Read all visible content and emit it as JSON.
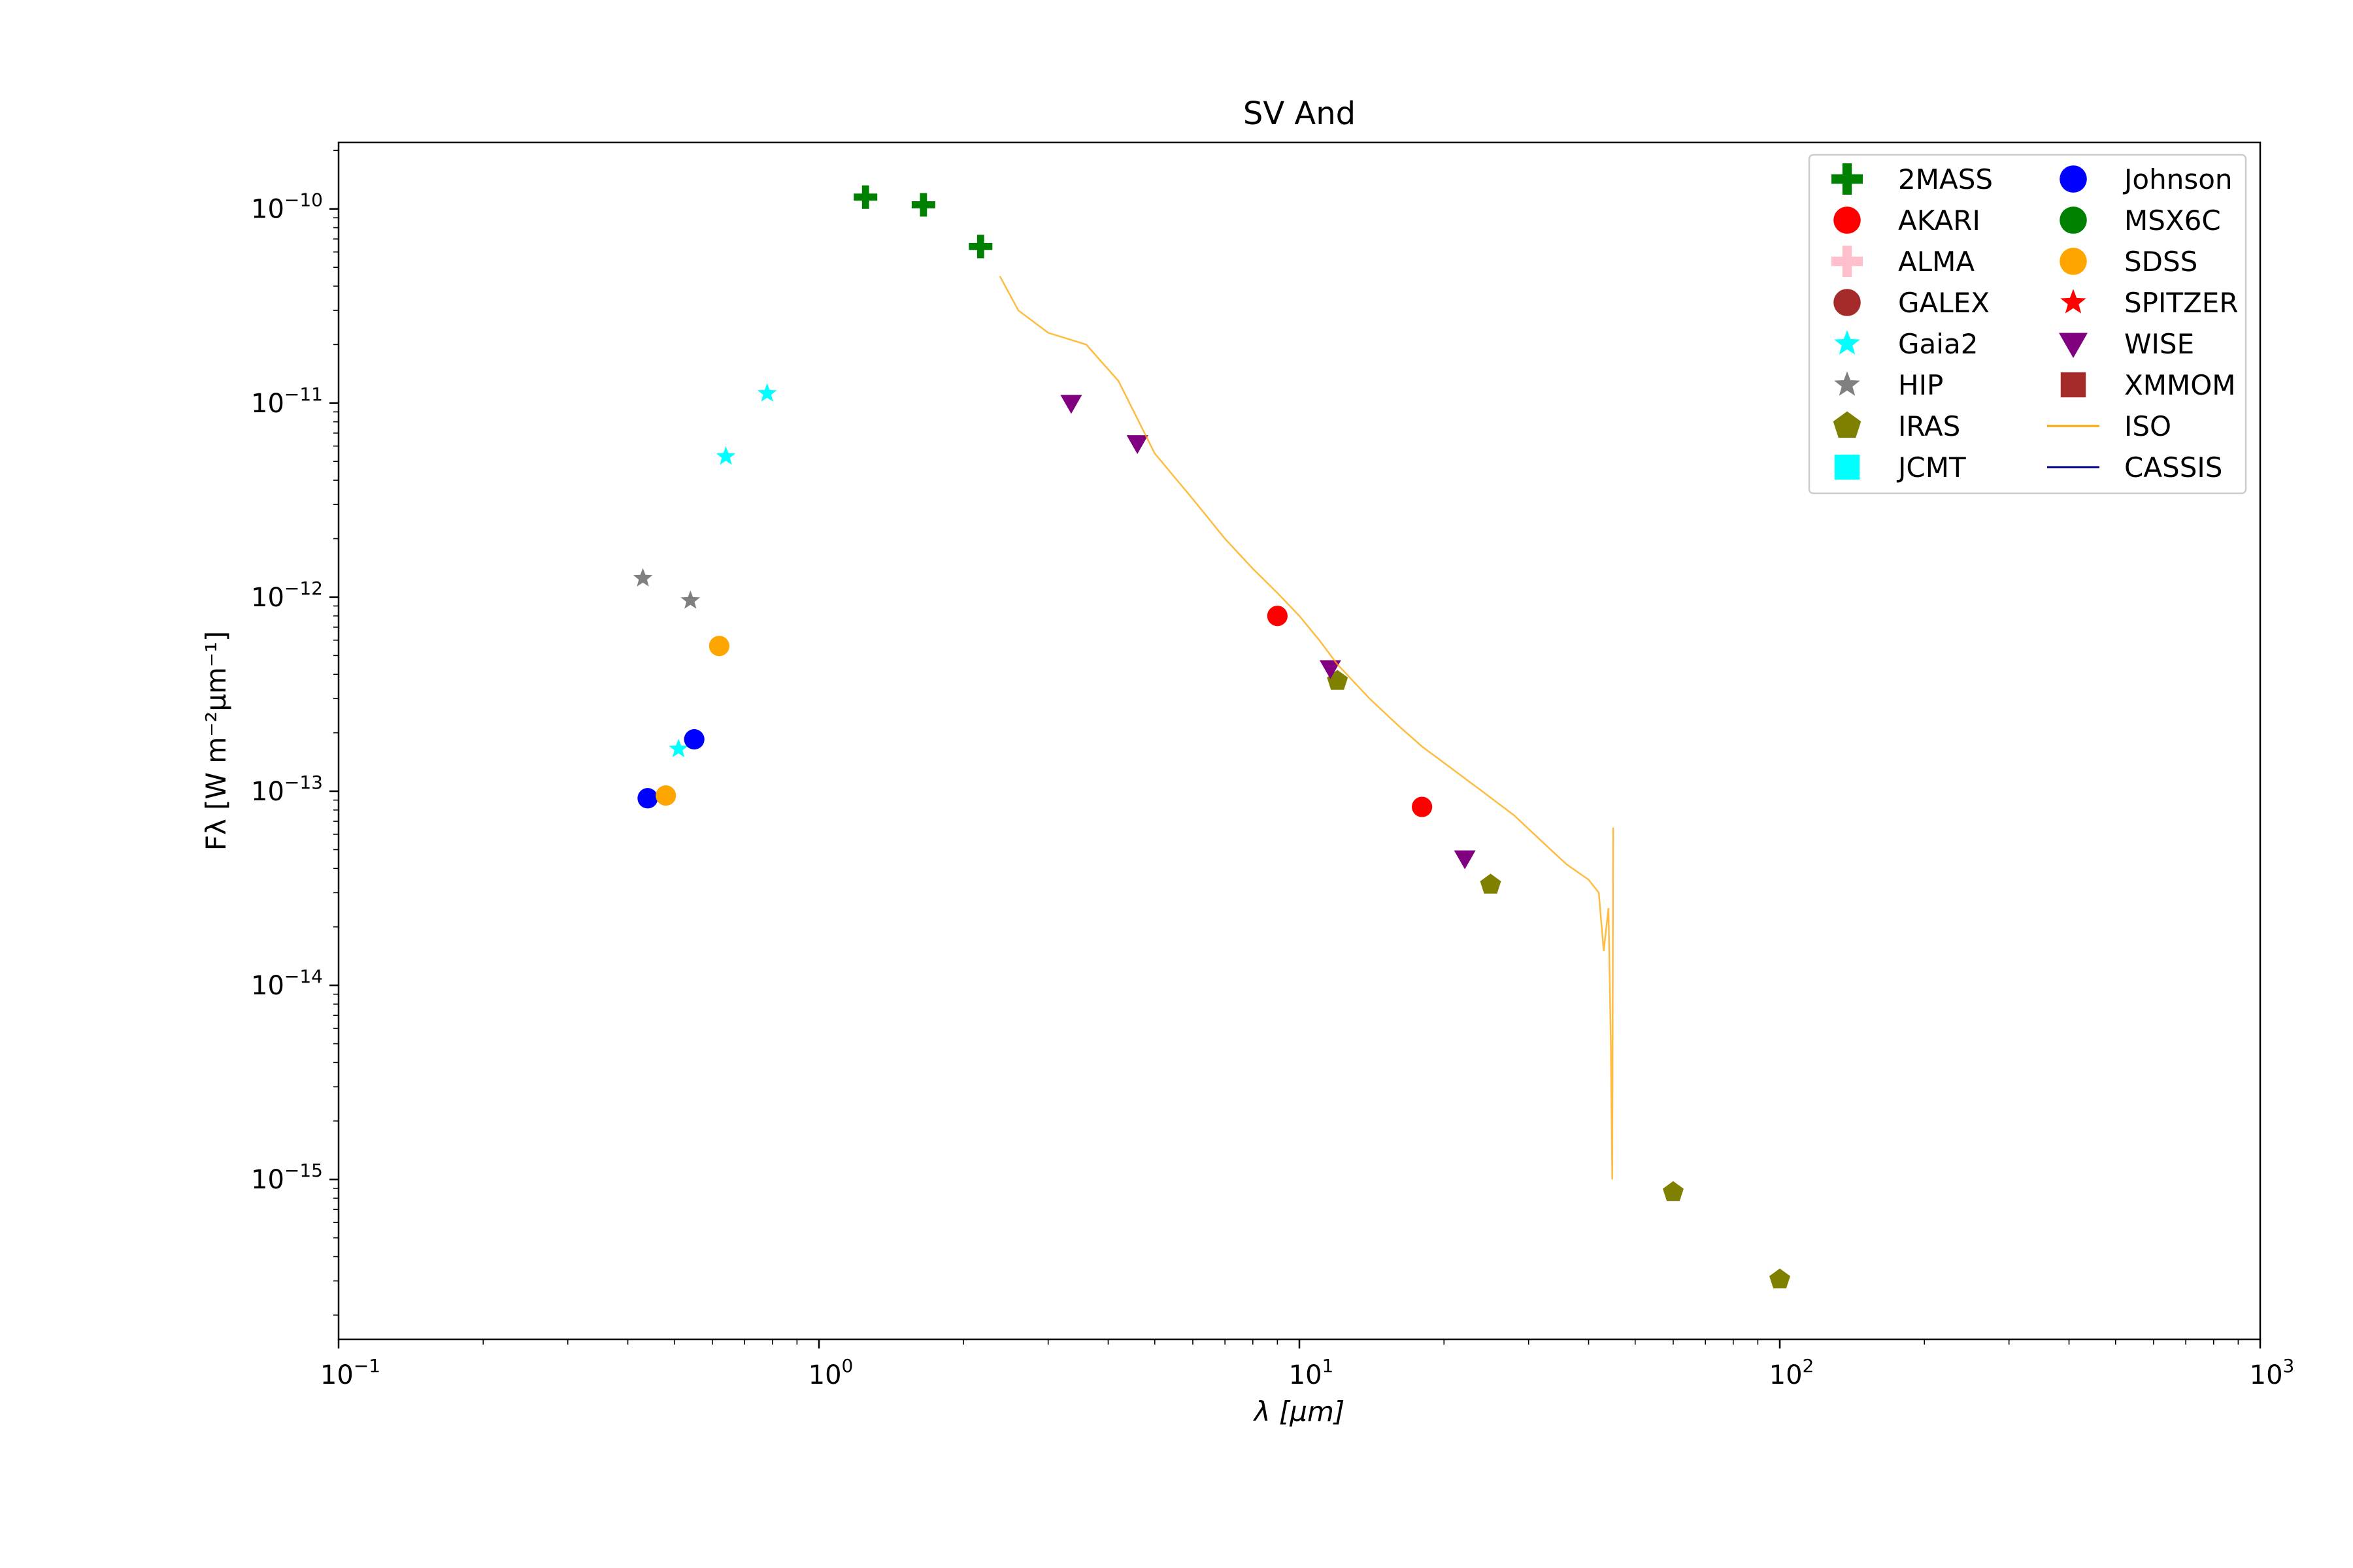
{
  "chart_data": {
    "type": "scatter",
    "title": "SV And",
    "xlabel": "λ [μm]",
    "ylabel": "Fλ [W m⁻²μm⁻¹]",
    "xscale": "log",
    "yscale": "log",
    "xlim": [
      0.1,
      1000
    ],
    "ylim": [
      1.5e-16,
      2.2e-10
    ],
    "x_ticks": [
      {
        "value": 0.1,
        "base": "10",
        "exp": "−1"
      },
      {
        "value": 1,
        "base": "10",
        "exp": "0"
      },
      {
        "value": 10,
        "base": "10",
        "exp": "1"
      },
      {
        "value": 100,
        "base": "10",
        "exp": "2"
      },
      {
        "value": 1000,
        "base": "10",
        "exp": "3"
      }
    ],
    "y_ticks": [
      {
        "value": 1e-10,
        "base": "10",
        "exp": "−10"
      },
      {
        "value": 1e-11,
        "base": "10",
        "exp": "−11"
      },
      {
        "value": 1e-12,
        "base": "10",
        "exp": "−12"
      },
      {
        "value": 1e-13,
        "base": "10",
        "exp": "−13"
      },
      {
        "value": 1e-14,
        "base": "10",
        "exp": "−14"
      },
      {
        "value": 1e-15,
        "base": "10",
        "exp": "−15"
      }
    ],
    "grid": false,
    "legend_position": "top-right",
    "legend_columns": 2,
    "series": [
      {
        "name": "2MASS",
        "marker": "plus",
        "color": "#008000",
        "points": [
          [
            1.25,
            1.15e-10
          ],
          [
            1.65,
            1.05e-10
          ],
          [
            2.17,
            6.4e-11
          ]
        ]
      },
      {
        "name": "AKARI",
        "marker": "circle",
        "color": "#ff0000",
        "points": [
          [
            9.0,
            8e-13
          ],
          [
            18.0,
            8.3e-14
          ]
        ]
      },
      {
        "name": "ALMA",
        "marker": "plus",
        "color": "#ffc0cb",
        "points": []
      },
      {
        "name": "GALEX",
        "marker": "circle",
        "color": "#a52a2a",
        "points": []
      },
      {
        "name": "Gaia2",
        "marker": "star",
        "color": "#00ffff",
        "points": [
          [
            0.51,
            1.65e-13
          ],
          [
            0.64,
            5.3e-12
          ],
          [
            0.78,
            1.12e-11
          ]
        ]
      },
      {
        "name": "HIP",
        "marker": "star",
        "color": "#808080",
        "points": [
          [
            0.43,
            1.25e-12
          ],
          [
            0.54,
            9.6e-13
          ]
        ]
      },
      {
        "name": "IRAS",
        "marker": "pentagon",
        "color": "#808000",
        "points": [
          [
            12.0,
            3.7e-13
          ],
          [
            25.0,
            3.3e-14
          ],
          [
            60.0,
            8.6e-16
          ],
          [
            100.0,
            3.05e-16
          ]
        ]
      },
      {
        "name": "JCMT",
        "marker": "square",
        "color": "#00ffff",
        "points": []
      },
      {
        "name": "Johnson",
        "marker": "circle",
        "color": "#0000ff",
        "points": [
          [
            0.44,
            9.2e-14
          ],
          [
            0.55,
            1.85e-13
          ]
        ]
      },
      {
        "name": "MSX6C",
        "marker": "circle",
        "color": "#008000",
        "points": []
      },
      {
        "name": "SDSS",
        "marker": "circle",
        "color": "#ffa500",
        "points": [
          [
            0.48,
            9.5e-14
          ],
          [
            0.62,
            5.6e-13
          ]
        ]
      },
      {
        "name": "SPITZER",
        "marker": "star",
        "color": "#ff0000",
        "points": []
      },
      {
        "name": "WISE",
        "marker": "triangle-down",
        "color": "#800080",
        "points": [
          [
            3.35,
            1e-11
          ],
          [
            4.6,
            6.2e-12
          ],
          [
            11.6,
            4.3e-13
          ],
          [
            22.1,
            4.5e-14
          ]
        ]
      },
      {
        "name": "XMMOM",
        "marker": "square",
        "color": "#a52a2a",
        "points": []
      },
      {
        "name": "ISO",
        "marker": "line",
        "color": "#ffa500",
        "points": [
          [
            2.38,
            4.5e-11
          ],
          [
            2.6,
            3e-11
          ],
          [
            3.0,
            2.3e-11
          ],
          [
            3.6,
            2e-11
          ],
          [
            4.2,
            1.3e-11
          ],
          [
            5.0,
            5.5e-12
          ],
          [
            6.0,
            3.2e-12
          ],
          [
            7.0,
            2e-12
          ],
          [
            8.0,
            1.4e-12
          ],
          [
            9.0,
            1.05e-12
          ],
          [
            10.0,
            8e-13
          ],
          [
            11.0,
            6e-13
          ],
          [
            12.0,
            4.5e-13
          ],
          [
            14.0,
            3e-13
          ],
          [
            16.0,
            2.2e-13
          ],
          [
            18.0,
            1.7e-13
          ],
          [
            20.0,
            1.4e-13
          ],
          [
            24.0,
            1e-13
          ],
          [
            28.0,
            7.5e-14
          ],
          [
            32.0,
            5.5e-14
          ],
          [
            36.0,
            4.2e-14
          ],
          [
            40.0,
            3.5e-14
          ],
          [
            42.0,
            3e-14
          ],
          [
            43.0,
            1.5e-14
          ],
          [
            44.0,
            2.5e-14
          ],
          [
            44.5,
            5e-15
          ],
          [
            44.8,
            1e-15
          ],
          [
            45.0,
            6.5e-14
          ]
        ]
      },
      {
        "name": "CASSIS",
        "marker": "line",
        "color": "#00008b",
        "points": []
      }
    ]
  }
}
